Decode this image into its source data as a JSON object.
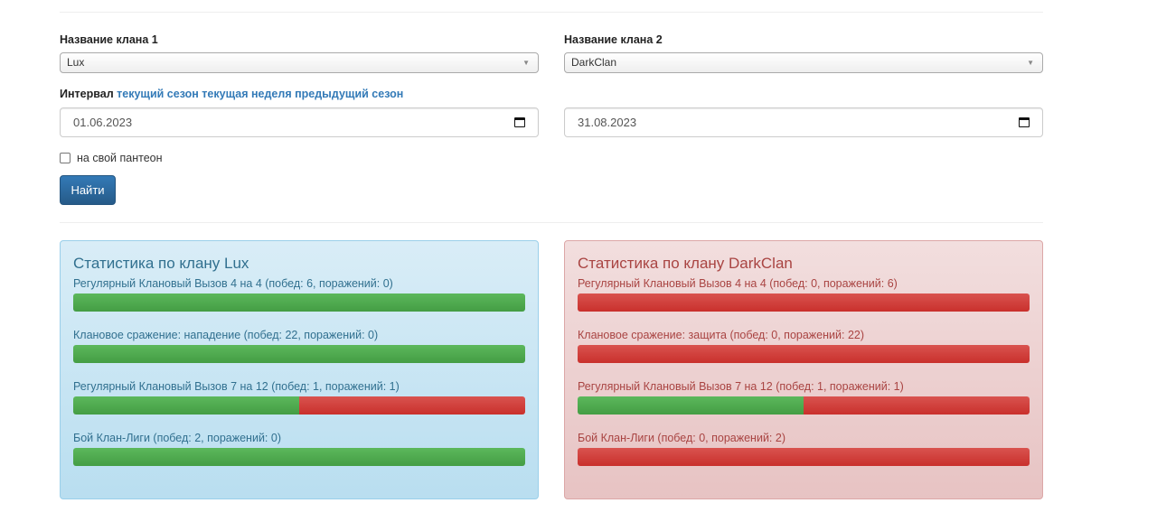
{
  "form": {
    "clan1_label": "Название клана 1",
    "clan1_value": "Lux",
    "clan2_label": "Название клана 2",
    "clan2_value": "DarkClan",
    "interval_label": "Интервал",
    "interval_links": [
      "текущий сезон",
      "текущая неделя",
      "предыдущий сезон"
    ],
    "date_from": "01.06.2023",
    "date_to": "31.08.2023",
    "pantheon_label": "на свой пантеон",
    "pantheon_checked": false,
    "search_button": "Найти"
  },
  "panels": [
    {
      "title": "Статистика по клану Lux",
      "color": "#31708f",
      "stats": [
        {
          "label": "Регулярный Клановый Вызов 4 на 4 (побед: 6, поражений: 0)",
          "wins": 6,
          "losses": 0
        },
        {
          "label": "Клановое сражение: нападение (побед: 22, поражений: 0)",
          "wins": 22,
          "losses": 0
        },
        {
          "label": "Регулярный Клановый Вызов 7 на 12 (побед: 1, поражений: 1)",
          "wins": 1,
          "losses": 1
        },
        {
          "label": "Бой Клан-Лиги (побед: 2, поражений: 0)",
          "wins": 2,
          "losses": 0
        }
      ]
    },
    {
      "title": "Статистика по клану DarkClan",
      "color": "#a94442",
      "stats": [
        {
          "label": "Регулярный Клановый Вызов 4 на 4 (побед: 0, поражений: 6)",
          "wins": 0,
          "losses": 6
        },
        {
          "label": "Клановое сражение: защита (побед: 0, поражений: 22)",
          "wins": 0,
          "losses": 22
        },
        {
          "label": "Регулярный Клановый Вызов 7 на 12 (побед: 1, поражений: 1)",
          "wins": 1,
          "losses": 1
        },
        {
          "label": "Бой Клан-Лиги (побед: 0, поражений: 2)",
          "wins": 0,
          "losses": 2
        }
      ]
    }
  ]
}
